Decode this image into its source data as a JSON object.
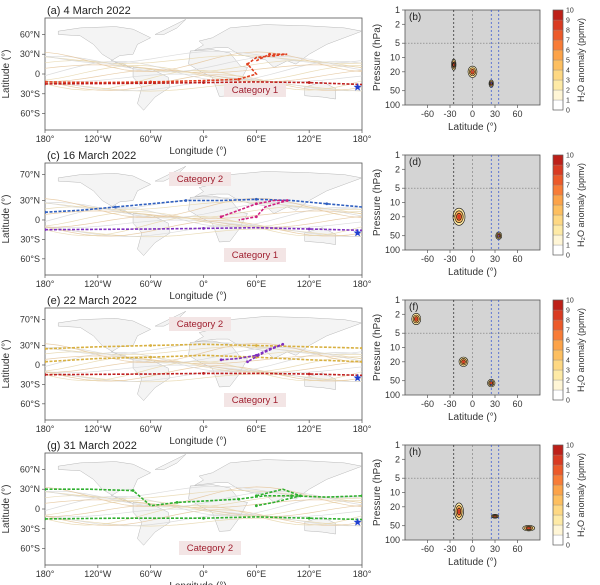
{
  "rows": [
    {
      "map_title": "(a) 4 March 2022",
      "prof_title": "(b)",
      "category_labels": [
        "Category 1"
      ],
      "paths": [
        {
          "color": "#e04020",
          "points": [
            [
              -180,
              -12
            ],
            [
              -120,
              -13
            ],
            [
              -60,
              -12
            ],
            [
              0,
              -10
            ],
            [
              40,
              -8
            ],
            [
              60,
              0
            ],
            [
              50,
              15
            ],
            [
              60,
              25
            ],
            [
              80,
              28
            ],
            [
              95,
              30
            ],
            [
              75,
              30
            ],
            [
              60,
              20
            ]
          ]
        },
        {
          "color": "#c02020",
          "points": [
            [
              -180,
              -15
            ],
            [
              -60,
              -14
            ],
            [
              0,
              -13
            ],
            [
              60,
              -12
            ],
            [
              120,
              -13
            ],
            [
              180,
              -16
            ]
          ]
        }
      ],
      "blobs": [
        {
          "lat": -25,
          "logp": 1.15,
          "rx": 3,
          "ry": 0.12
        },
        {
          "lat": 0,
          "logp": 1.3,
          "rx": 6,
          "ry": 0.12
        },
        {
          "lat": 25,
          "logp": 1.55,
          "rx": 3,
          "ry": 0.08
        }
      ]
    },
    {
      "map_title": "(c) 16 March 2022",
      "prof_title": "(d)",
      "category_labels": [
        "Category 2",
        "Category 1"
      ],
      "paths": [
        {
          "color": "#3060c0",
          "points": [
            [
              -180,
              12
            ],
            [
              -140,
              15
            ],
            [
              -100,
              20
            ],
            [
              -60,
              25
            ],
            [
              -20,
              30
            ],
            [
              20,
              30
            ],
            [
              60,
              32
            ],
            [
              100,
              30
            ],
            [
              140,
              25
            ],
            [
              180,
              20
            ]
          ]
        },
        {
          "color": "#d02080",
          "points": [
            [
              20,
              5
            ],
            [
              40,
              15
            ],
            [
              60,
              25
            ],
            [
              80,
              30
            ],
            [
              95,
              30
            ],
            [
              70,
              20
            ],
            [
              60,
              5
            ],
            [
              40,
              0
            ]
          ]
        },
        {
          "color": "#8030c0",
          "points": [
            [
              -180,
              -15
            ],
            [
              -60,
              -14
            ],
            [
              0,
              -13
            ],
            [
              60,
              -12
            ],
            [
              120,
              -14
            ],
            [
              180,
              -16
            ]
          ]
        }
      ],
      "blobs": [
        {
          "lat": -18,
          "logp": 1.3,
          "rx": 8,
          "ry": 0.18
        },
        {
          "lat": 35,
          "logp": 1.7,
          "rx": 4,
          "ry": 0.08
        }
      ]
    },
    {
      "map_title": "(e) 22 March 2022",
      "prof_title": "(f)",
      "category_labels": [
        "Category 2",
        "Category 1"
      ],
      "paths": [
        {
          "color": "#d8b040",
          "points": [
            [
              -180,
              25
            ],
            [
              -120,
              28
            ],
            [
              -60,
              30
            ],
            [
              0,
              32
            ],
            [
              60,
              30
            ],
            [
              120,
              28
            ],
            [
              180,
              26
            ]
          ]
        },
        {
          "color": "#d8b040",
          "points": [
            [
              -180,
              5
            ],
            [
              -120,
              10
            ],
            [
              -60,
              12
            ],
            [
              0,
              15
            ],
            [
              60,
              12
            ],
            [
              120,
              8
            ],
            [
              180,
              5
            ]
          ]
        },
        {
          "color": "#8030c0",
          "points": [
            [
              20,
              8
            ],
            [
              40,
              10
            ],
            [
              60,
              15
            ],
            [
              75,
              25
            ],
            [
              90,
              32
            ],
            [
              70,
              20
            ],
            [
              50,
              5
            ]
          ]
        },
        {
          "color": "#c02020",
          "points": [
            [
              -180,
              -15
            ],
            [
              -60,
              -14
            ],
            [
              0,
              -13
            ],
            [
              60,
              -13
            ],
            [
              120,
              -14
            ],
            [
              180,
              -16
            ]
          ]
        }
      ],
      "blobs": [
        {
          "lat": -75,
          "logp": 0.4,
          "rx": 6,
          "ry": 0.12
        },
        {
          "lat": -12,
          "logp": 1.3,
          "rx": 6,
          "ry": 0.1
        },
        {
          "lat": 25,
          "logp": 1.75,
          "rx": 5,
          "ry": 0.08
        }
      ]
    },
    {
      "map_title": "(g) 31 March 2022",
      "prof_title": "(h)",
      "category_labels": [
        "Category 2"
      ],
      "paths": [
        {
          "color": "#30b030",
          "points": [
            [
              -180,
              30
            ],
            [
              -130,
              30
            ],
            [
              -80,
              28
            ],
            [
              -60,
              5
            ],
            [
              -30,
              10
            ],
            [
              0,
              12
            ],
            [
              40,
              15
            ],
            [
              70,
              20
            ],
            [
              100,
              20
            ],
            [
              140,
              18
            ],
            [
              180,
              20
            ]
          ]
        },
        {
          "color": "#30b030",
          "points": [
            [
              -180,
              -15
            ],
            [
              -100,
              -14
            ],
            [
              0,
              -14
            ],
            [
              60,
              -12
            ],
            [
              120,
              -14
            ],
            [
              180,
              -16
            ]
          ]
        },
        {
          "color": "#30b030",
          "points": [
            [
              60,
              20
            ],
            [
              90,
              30
            ],
            [
              110,
              20
            ],
            [
              80,
              10
            ],
            [
              60,
              5
            ]
          ]
        }
      ],
      "blobs": [
        {
          "lat": -18,
          "logp": 1.4,
          "rx": 6,
          "ry": 0.18
        },
        {
          "lat": 30,
          "logp": 1.5,
          "rx": 5,
          "ry": 0.04
        },
        {
          "lat": 75,
          "logp": 1.75,
          "rx": 8,
          "ry": 0.06
        }
      ]
    }
  ],
  "map_axes": {
    "ylabel": "Latitude (°)",
    "xlabel": "Longitude (°)",
    "lat_ticks": [
      60,
      30,
      0,
      -30,
      -60
    ],
    "lat_tick_labels": [
      "60°N",
      "30°N",
      "0",
      "30°S",
      "60°S"
    ],
    "lat_ticks_alt": [
      70,
      30,
      0,
      -30,
      -60
    ],
    "lat_tick_labels_alt": [
      "70°N",
      "30°N",
      "0",
      "30°S",
      "60°S"
    ],
    "lon_ticks": [
      -180,
      -120,
      -60,
      0,
      60,
      120,
      180
    ],
    "lon_tick_labels": [
      "180°",
      "120°W",
      "60°W",
      "0°",
      "60°E",
      "120°E",
      "180°"
    ]
  },
  "profile_axes": {
    "ylabel": "Pressure (hPa)",
    "xlabel": "Latitude (°)",
    "p_ticks": [
      1,
      2,
      5,
      10,
      20,
      50,
      100
    ],
    "p_tick_labels": [
      "1",
      "2",
      "5",
      "10",
      "20",
      "50",
      "100"
    ],
    "lat_ticks": [
      -60,
      -30,
      0,
      30,
      60
    ],
    "lat_tick_labels": [
      "-60",
      "-30",
      "0",
      "30",
      "60"
    ],
    "black_dashed_lat": [
      -25
    ],
    "gray_dashed_lat": [
      0
    ],
    "blue_dashed_lat": [
      25,
      35
    ],
    "gray_dashed_p": [
      5
    ]
  },
  "colorbar": {
    "label": "H₂O anomaly (ppmv)",
    "ticks": [
      0,
      1,
      2,
      3,
      4,
      5,
      6,
      7,
      8,
      9,
      10
    ],
    "tick_labels": [
      "0",
      "1",
      "2",
      "3",
      "4",
      "5",
      "6",
      "7",
      "8",
      "9",
      "10"
    ],
    "colors": [
      "#ffffff",
      "#fff6d6",
      "#feeaa6",
      "#fed883",
      "#fdbf60",
      "#fca349",
      "#f87c37",
      "#ec5a2a",
      "#d93b22",
      "#bd2019"
    ]
  },
  "star_color": "#2040d0",
  "profile_bg": "#d4d4d4"
}
